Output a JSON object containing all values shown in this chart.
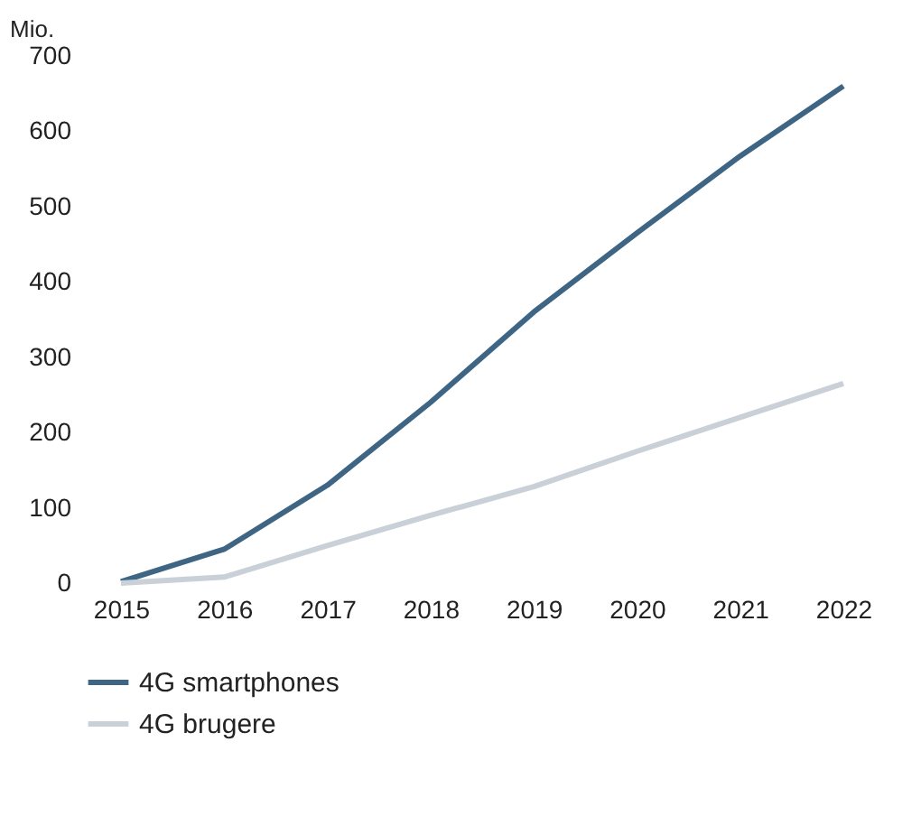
{
  "chart_data": {
    "type": "line",
    "ylabel": "Mio.",
    "x": [
      2015,
      2016,
      2017,
      2018,
      2019,
      2020,
      2021,
      2022
    ],
    "series": [
      {
        "name": "4G smartphones",
        "color": "#3f6584",
        "values": [
          2,
          45,
          130,
          240,
          360,
          465,
          567,
          660
        ]
      },
      {
        "name": "4G brugere",
        "color": "#c9d0d8",
        "values": [
          0,
          8,
          50,
          90,
          128,
          175,
          220,
          265
        ]
      }
    ],
    "xlim": [
      2015,
      2022
    ],
    "xticks": [
      2015,
      2016,
      2017,
      2018,
      2019,
      2020,
      2021,
      2022
    ],
    "ylim": [
      0,
      700
    ],
    "yticks": [
      0,
      100,
      200,
      300,
      400,
      500,
      600,
      700
    ],
    "legend": "bottom left",
    "marker": "none",
    "line_style": "solid"
  }
}
